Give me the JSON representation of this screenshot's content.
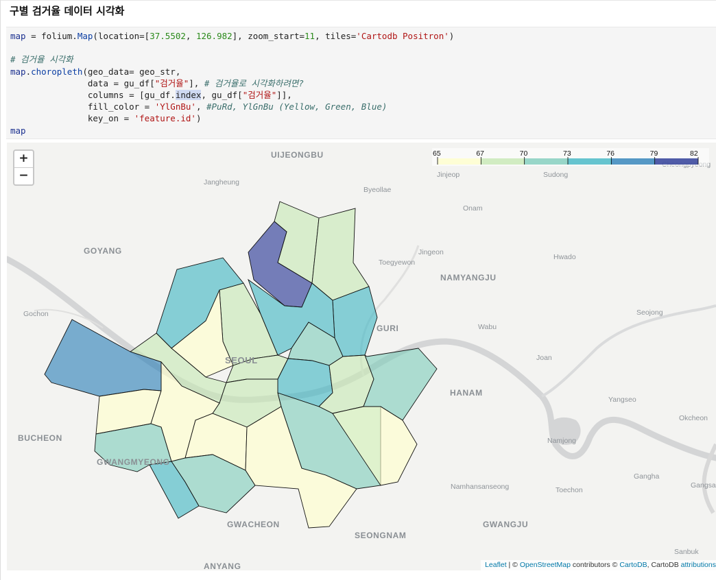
{
  "heading": "구별 검거율 데이터 시각화",
  "code": [
    [
      [
        "map",
        "v"
      ],
      [
        " = folium.",
        ""
      ],
      [
        "Map",
        "f"
      ],
      [
        "(location=[",
        ""
      ],
      [
        "37.5502",
        "n"
      ],
      [
        ", ",
        ""
      ],
      [
        "126.982",
        "n"
      ],
      [
        "], zoom_start=",
        ""
      ],
      [
        "11",
        "n"
      ],
      [
        ", tiles=",
        ""
      ],
      [
        "'Cartodb Positron'",
        "s"
      ],
      [
        ")",
        ""
      ]
    ],
    [],
    [
      [
        "# 검거율 시각화",
        "c"
      ]
    ],
    [
      [
        "map",
        "v"
      ],
      [
        ".",
        ""
      ],
      [
        "choropleth",
        "f"
      ],
      [
        "(geo_data= geo_str,",
        ""
      ]
    ],
    [
      [
        "               data = gu_df[",
        ""
      ],
      [
        "\"검거율\"",
        "s"
      ],
      [
        "], ",
        ""
      ],
      [
        "# 검거율로 시각화하려면?",
        "c"
      ]
    ],
    [
      [
        "               columns = [gu_df.",
        ""
      ],
      [
        "index",
        "h"
      ],
      [
        ", gu_df[",
        ""
      ],
      [
        "\"검거율\"",
        "s"
      ],
      [
        "]],",
        ""
      ]
    ],
    [
      [
        "               fill_color = ",
        ""
      ],
      [
        "'YlGnBu'",
        "s"
      ],
      [
        ", ",
        ""
      ],
      [
        "#PuRd, YlGnBu (Yellow, Green, Blue)",
        "c"
      ]
    ],
    [
      [
        "               key_on = ",
        ""
      ],
      [
        "'feature.id'",
        "s"
      ],
      [
        ")",
        ""
      ]
    ],
    [
      [
        "map",
        "v"
      ]
    ]
  ],
  "map": {
    "zoom_in": "+",
    "zoom_out": "−",
    "legend": {
      "ticks": [
        "65",
        "67",
        "70",
        "73",
        "76",
        "79",
        "82"
      ],
      "colors": [
        "#ffffcc",
        "#c7e9b4",
        "#7fcdbb",
        "#41b6c4",
        "#2c7fb8",
        "#253494"
      ]
    },
    "places_big": [
      {
        "name": "UIJEONGBU"
      },
      {
        "name": "GOYANG"
      },
      {
        "name": "NAMYANGJU"
      },
      {
        "name": "GURI"
      },
      {
        "name": "HANAM"
      },
      {
        "name": "BUCHEON"
      },
      {
        "name": "GWANGMYEONG"
      },
      {
        "name": "GWACHEON"
      },
      {
        "name": "SEONGNAM"
      },
      {
        "name": "GWANGJU"
      },
      {
        "name": "ANYANG"
      },
      {
        "name": "SEOUL"
      }
    ],
    "places_small": [
      {
        "name": "Jangheung"
      },
      {
        "name": "Byeollae"
      },
      {
        "name": "Jinjeop"
      },
      {
        "name": "Sudong"
      },
      {
        "name": "Onam"
      },
      {
        "name": "Jingeon"
      },
      {
        "name": "Toegyewon"
      },
      {
        "name": "Hwado"
      },
      {
        "name": "Gochon"
      },
      {
        "name": "Seojong"
      },
      {
        "name": "Wabu"
      },
      {
        "name": "Joan"
      },
      {
        "name": "Yangseo"
      },
      {
        "name": "Okcheon"
      },
      {
        "name": "Namjong"
      },
      {
        "name": "Gangha"
      },
      {
        "name": "Gangsang"
      },
      {
        "name": "Namhansanseong"
      },
      {
        "name": "Toechon"
      },
      {
        "name": "Sanbuk"
      },
      {
        "name": "Cheongpyeong"
      }
    ],
    "attribution": {
      "leaflet": "Leaflet",
      "sep1": " | © ",
      "osm": "OpenStreetMap",
      "contrib": " contributors © ",
      "cartodb": "CartoDB",
      "sep2": ", CartoDB ",
      "attributions": "attributions"
    }
  }
}
